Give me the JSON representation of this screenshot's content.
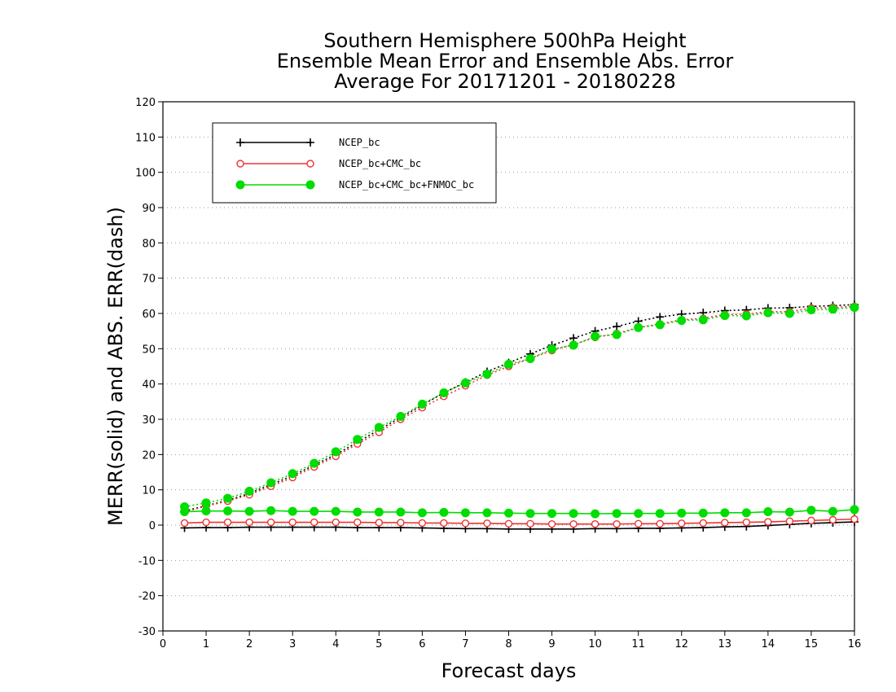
{
  "chart_data": {
    "type": "line",
    "title_lines": [
      "Southern Hemisphere 500hPa Height",
      "Ensemble Mean Error and Ensemble Abs. Error",
      "Average For 20171201 - 20180228"
    ],
    "xlabel": "Forecast days",
    "ylabel": "MERR(solid) and ABS. ERR(dash)",
    "xlim": [
      0,
      16
    ],
    "ylim": [
      -30,
      120
    ],
    "xticks": [
      0,
      1,
      2,
      3,
      4,
      5,
      6,
      7,
      8,
      9,
      10,
      11,
      12,
      13,
      14,
      15,
      16
    ],
    "yticks": [
      -30,
      -20,
      -10,
      0,
      10,
      20,
      30,
      40,
      50,
      60,
      70,
      80,
      90,
      100,
      110,
      120
    ],
    "grid": "dotted horizontal",
    "legend_position": "top-left",
    "x": [
      0.5,
      1,
      1.5,
      2,
      2.5,
      3,
      3.5,
      4,
      4.5,
      5,
      5.5,
      6,
      6.5,
      7,
      7.5,
      8,
      8.5,
      9,
      9.5,
      10,
      10.5,
      11,
      11.5,
      12,
      12.5,
      13,
      13.5,
      14,
      14.5,
      15,
      15.5,
      16
    ],
    "series": [
      {
        "name": "NCEP_bc",
        "color": "#000000",
        "marker": "plus",
        "merr": [
          -0.8,
          -0.7,
          -0.7,
          -0.6,
          -0.6,
          -0.6,
          -0.6,
          -0.6,
          -0.7,
          -0.7,
          -0.7,
          -0.8,
          -0.9,
          -1.0,
          -1.0,
          -1.1,
          -1.1,
          -1.1,
          -1.1,
          -1.0,
          -1.0,
          -0.9,
          -0.9,
          -0.8,
          -0.7,
          -0.5,
          -0.4,
          -0.1,
          0.2,
          0.5,
          0.7,
          0.9
        ],
        "abs_err": [
          4.0,
          5.5,
          7.0,
          9.0,
          11.5,
          14.0,
          17.0,
          20.0,
          23.5,
          27.0,
          30.5,
          34.0,
          37.5,
          40.5,
          43.5,
          46.0,
          48.5,
          51.0,
          53.0,
          55.0,
          56.3,
          57.8,
          59.0,
          59.8,
          60.2,
          60.8,
          61.0,
          61.5,
          61.6,
          62.0,
          62.2,
          62.5
        ]
      },
      {
        "name": "NCEP_bc+CMC_bc",
        "color": "#ee3333",
        "marker": "open-circle",
        "merr": [
          0.6,
          0.8,
          0.8,
          0.8,
          0.8,
          0.8,
          0.8,
          0.8,
          0.8,
          0.7,
          0.7,
          0.6,
          0.6,
          0.5,
          0.5,
          0.4,
          0.4,
          0.3,
          0.3,
          0.3,
          0.3,
          0.4,
          0.4,
          0.5,
          0.6,
          0.7,
          0.8,
          0.9,
          1.1,
          1.3,
          1.5,
          1.7
        ],
        "abs_err": [
          3.7,
          5.4,
          6.8,
          8.6,
          11.0,
          13.5,
          16.5,
          19.5,
          23.0,
          26.3,
          30.0,
          33.3,
          36.5,
          39.5,
          42.5,
          45.0,
          47.2,
          49.5,
          51.2,
          53.2,
          54.3,
          56.0,
          57.0,
          58.2,
          58.6,
          59.7,
          59.8,
          60.5,
          60.5,
          61.5,
          61.7,
          62.0
        ]
      },
      {
        "name": "NCEP_bc+CMC_bc+FNMOC_bc",
        "color": "#00dd00",
        "marker": "filled-circle",
        "merr": [
          3.8,
          4.0,
          4.0,
          3.9,
          4.1,
          3.9,
          3.9,
          3.9,
          3.7,
          3.7,
          3.7,
          3.5,
          3.6,
          3.5,
          3.5,
          3.4,
          3.3,
          3.3,
          3.3,
          3.2,
          3.3,
          3.3,
          3.3,
          3.4,
          3.4,
          3.5,
          3.5,
          3.8,
          3.7,
          4.2,
          3.9,
          4.4
        ],
        "abs_err": [
          5.2,
          6.3,
          7.6,
          9.6,
          12.0,
          14.6,
          17.5,
          20.8,
          24.3,
          27.7,
          30.8,
          34.3,
          37.5,
          40.3,
          42.8,
          45.6,
          47.2,
          49.9,
          51.0,
          53.5,
          54.0,
          56.0,
          56.8,
          58.0,
          58.2,
          59.4,
          59.3,
          60.2,
          60.0,
          61.0,
          61.2,
          61.7
        ]
      }
    ]
  }
}
